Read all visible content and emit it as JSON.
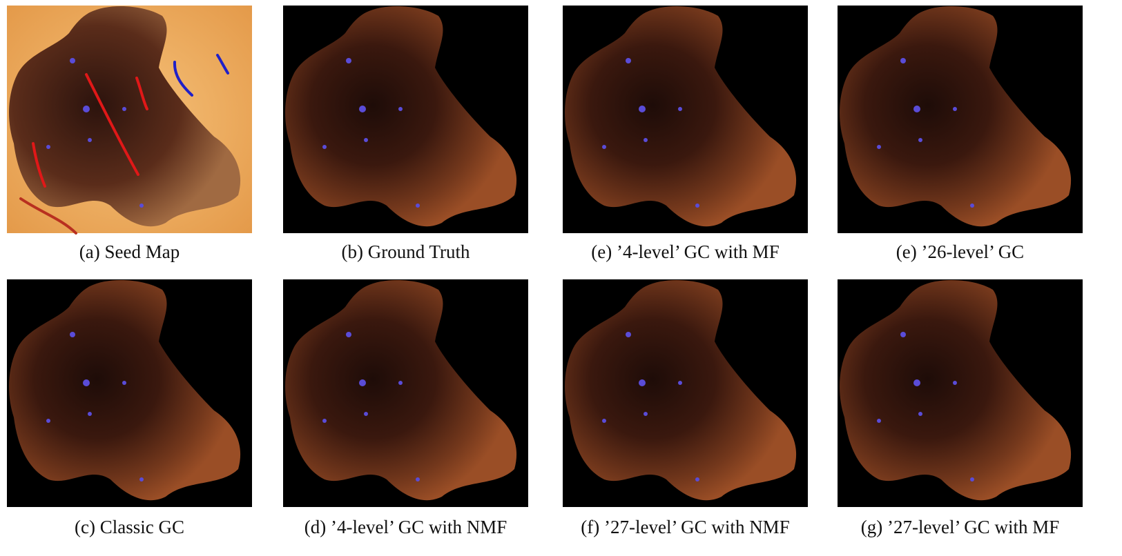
{
  "figure": {
    "panels": [
      {
        "caption": "(a) Seed Map"
      },
      {
        "caption": "(b) Ground Truth"
      },
      {
        "caption": "(e) ’4-level’ GC with MF"
      },
      {
        "caption": "(e) ’26-level’ GC"
      },
      {
        "caption": "(c) Classic GC"
      },
      {
        "caption": "(d) ’4-level’ GC with NMF"
      },
      {
        "caption": "(f) ’27-level’ GC with NMF"
      },
      {
        "caption": "(g) ’27-level’ GC with MF"
      }
    ]
  }
}
